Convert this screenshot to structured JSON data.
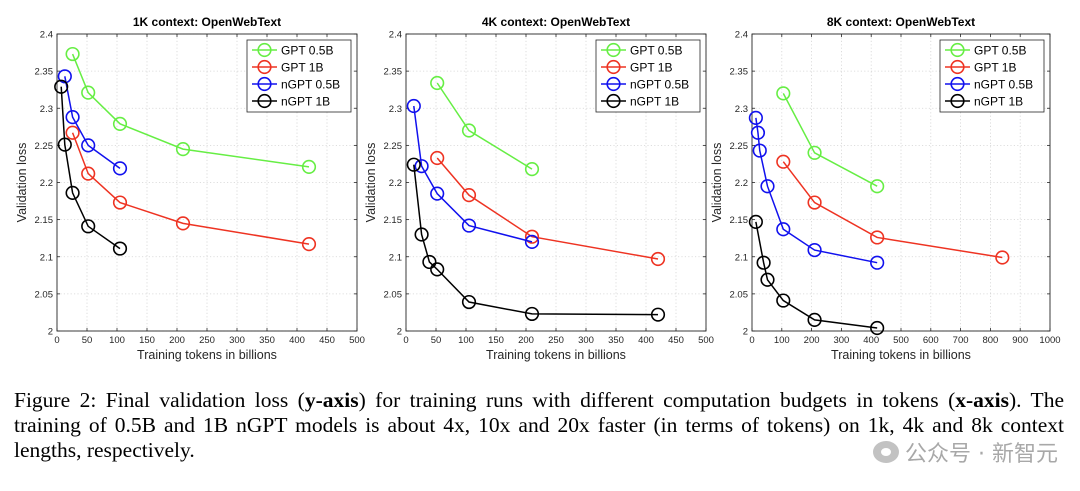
{
  "chart_data": [
    {
      "type": "line",
      "title": "1K context: OpenWebText",
      "xlabel": "Training tokens in billions",
      "ylabel": "Validation loss",
      "xlim": [
        0,
        500
      ],
      "ylim": [
        2,
        2.4
      ],
      "xticks": [
        0,
        50,
        100,
        150,
        200,
        250,
        300,
        350,
        400,
        450,
        500
      ],
      "yticks": [
        2,
        2.05,
        2.1,
        2.15,
        2.2,
        2.25,
        2.3,
        2.35,
        2.4
      ],
      "grid": true,
      "legend_position": "top-right",
      "series": [
        {
          "name": "GPT 0.5B",
          "color": "#66ee44",
          "points": [
            [
              26,
              2.373
            ],
            [
              52,
              2.321
            ],
            [
              105,
              2.279
            ],
            [
              210,
              2.245
            ],
            [
              420,
              2.221
            ]
          ]
        },
        {
          "name": "GPT 1B",
          "color": "#ee3322",
          "points": [
            [
              26,
              2.267
            ],
            [
              52,
              2.212
            ],
            [
              105,
              2.173
            ],
            [
              210,
              2.145
            ],
            [
              420,
              2.117
            ]
          ]
        },
        {
          "name": "nGPT 0.5B",
          "color": "#1111ee",
          "points": [
            [
              13,
              2.343
            ],
            [
              26,
              2.288
            ],
            [
              52,
              2.25
            ],
            [
              105,
              2.219
            ]
          ]
        },
        {
          "name": "nGPT 1B",
          "color": "#000000",
          "points": [
            [
              7,
              2.329
            ],
            [
              13,
              2.251
            ],
            [
              26,
              2.186
            ],
            [
              52,
              2.141
            ],
            [
              105,
              2.111
            ]
          ]
        }
      ]
    },
    {
      "type": "line",
      "title": "4K context: OpenWebText",
      "xlabel": "Training tokens in billions",
      "ylabel": "Validation loss",
      "xlim": [
        0,
        500
      ],
      "ylim": [
        2,
        2.4
      ],
      "xticks": [
        0,
        50,
        100,
        150,
        200,
        250,
        300,
        350,
        400,
        450,
        500
      ],
      "yticks": [
        2,
        2.05,
        2.1,
        2.15,
        2.2,
        2.25,
        2.3,
        2.35,
        2.4
      ],
      "grid": true,
      "legend_position": "top-right",
      "series": [
        {
          "name": "GPT 0.5B",
          "color": "#66ee44",
          "points": [
            [
              52,
              2.334
            ],
            [
              105,
              2.27
            ],
            [
              210,
              2.218
            ]
          ]
        },
        {
          "name": "GPT 1B",
          "color": "#ee3322",
          "points": [
            [
              52,
              2.233
            ],
            [
              105,
              2.183
            ],
            [
              210,
              2.127
            ],
            [
              420,
              2.097
            ]
          ]
        },
        {
          "name": "nGPT 0.5B",
          "color": "#1111ee",
          "points": [
            [
              13,
              2.303
            ],
            [
              26,
              2.222
            ],
            [
              52,
              2.185
            ],
            [
              105,
              2.142
            ],
            [
              210,
              2.12
            ]
          ]
        },
        {
          "name": "nGPT 1B",
          "color": "#000000",
          "points": [
            [
              13,
              2.224
            ],
            [
              26,
              2.13
            ],
            [
              39,
              2.093
            ],
            [
              52,
              2.083
            ],
            [
              105,
              2.039
            ],
            [
              210,
              2.023
            ],
            [
              420,
              2.022
            ]
          ]
        }
      ]
    },
    {
      "type": "line",
      "title": "8K context: OpenWebText",
      "xlabel": "Training tokens in billions",
      "ylabel": "Validation loss",
      "xlim": [
        0,
        1000
      ],
      "ylim": [
        2,
        2.4
      ],
      "xticks": [
        0,
        100,
        200,
        300,
        400,
        500,
        600,
        700,
        800,
        900,
        1000
      ],
      "yticks": [
        2,
        2.05,
        2.1,
        2.15,
        2.2,
        2.25,
        2.3,
        2.35,
        2.4
      ],
      "grid": true,
      "legend_position": "top-right",
      "series": [
        {
          "name": "GPT 0.5B",
          "color": "#66ee44",
          "points": [
            [
              105,
              2.32
            ],
            [
              210,
              2.24
            ],
            [
              420,
              2.195
            ]
          ]
        },
        {
          "name": "GPT 1B",
          "color": "#ee3322",
          "points": [
            [
              105,
              2.228
            ],
            [
              210,
              2.173
            ],
            [
              420,
              2.126
            ],
            [
              840,
              2.099
            ]
          ]
        },
        {
          "name": "nGPT 0.5B",
          "color": "#1111ee",
          "points": [
            [
              13,
              2.287
            ],
            [
              20,
              2.267
            ],
            [
              26,
              2.243
            ],
            [
              52,
              2.195
            ],
            [
              105,
              2.137
            ],
            [
              210,
              2.109
            ],
            [
              420,
              2.092
            ]
          ]
        },
        {
          "name": "nGPT 1B",
          "color": "#000000",
          "points": [
            [
              13,
              2.147
            ],
            [
              39,
              2.092
            ],
            [
              52,
              2.069
            ],
            [
              105,
              2.041
            ],
            [
              210,
              2.015
            ],
            [
              420,
              2.004
            ]
          ]
        }
      ]
    }
  ],
  "caption": {
    "lead": "Figure 2: Final validation loss (",
    "bold1": "y-axis",
    "mid1": ") for training runs with different computation budgets in tokens (",
    "bold2": "x-axis",
    "tail": "). The training of 0.5B and 1B nGPT models is about 4x, 10x and 20x faster (in terms of tokens) on 1k, 4k and 8k context lengths, respectively."
  },
  "watermark": {
    "text": "公众号 · 新智元",
    "icon": "wechat-icon"
  }
}
